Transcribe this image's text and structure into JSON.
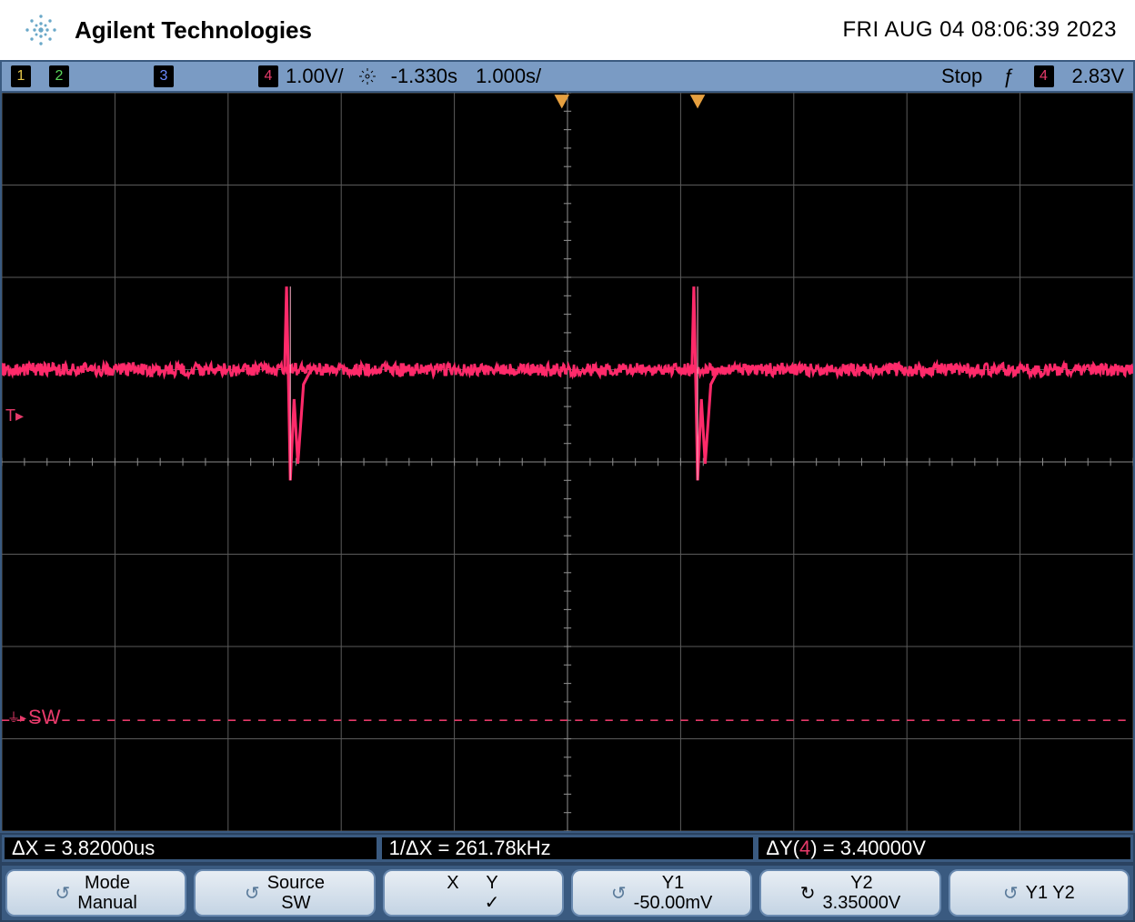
{
  "header": {
    "brand": "Agilent Technologies",
    "timestamp": "FRI AUG 04 08:06:39 2023",
    "starburst_color": "#6aa8c8"
  },
  "status_bar": {
    "background": "#7a9bc4",
    "channels": {
      "ch1": {
        "num": "1",
        "color": "#e6c84a"
      },
      "ch2": {
        "num": "2",
        "color": "#5ad65a"
      },
      "ch3": {
        "num": "3",
        "color": "#6a8aff"
      },
      "ch4": {
        "num": "4",
        "color": "#e63a6a"
      }
    },
    "volts_div": "1.00V/",
    "time_offset": "-1.330s",
    "time_div": "1.000s/",
    "run_mode": "Stop",
    "trigger_edge": "ƒ",
    "trigger_chan": "4",
    "trigger_level": "2.83V"
  },
  "scope": {
    "width_divs": 10,
    "height_divs": 8,
    "grid_color": "#5a5a5a",
    "center_grid_color": "#8a8a8a",
    "waveform_color": "#ff2a6a",
    "waveform_baseline_div": 3.0,
    "noise_amplitude": 0.07,
    "spike1_x_div": 2.55,
    "spike2_x_div": 6.15,
    "spike_up_div": 0.9,
    "spike_down_div": 1.2,
    "trigger_y_div": 3.4,
    "sw_line_div": 6.8,
    "sw_label": "SW",
    "sw_color": "#e63a6a",
    "top_marker1_x_div": 4.95,
    "top_marker2_x_div": 6.15,
    "top_marker_color": "#e6a040"
  },
  "measurements": {
    "dx": "ΔX = 3.82000us",
    "inv_dx": "1/ΔX = 261.78kHz",
    "dy_prefix": "ΔY(",
    "dy_chan": "4",
    "dy_suffix": ") = 3.40000V"
  },
  "softkeys": {
    "mode": {
      "label": "Mode",
      "value": "Manual"
    },
    "source": {
      "label": "Source",
      "value": "SW"
    },
    "xy": {
      "x_label": "X",
      "y_label": "Y",
      "check": "✓"
    },
    "y1": {
      "label": "Y1",
      "value": "-50.00mV"
    },
    "y2": {
      "label": "Y2",
      "value": "3.35000V"
    },
    "y1y2": {
      "label": "Y1 Y2"
    }
  }
}
